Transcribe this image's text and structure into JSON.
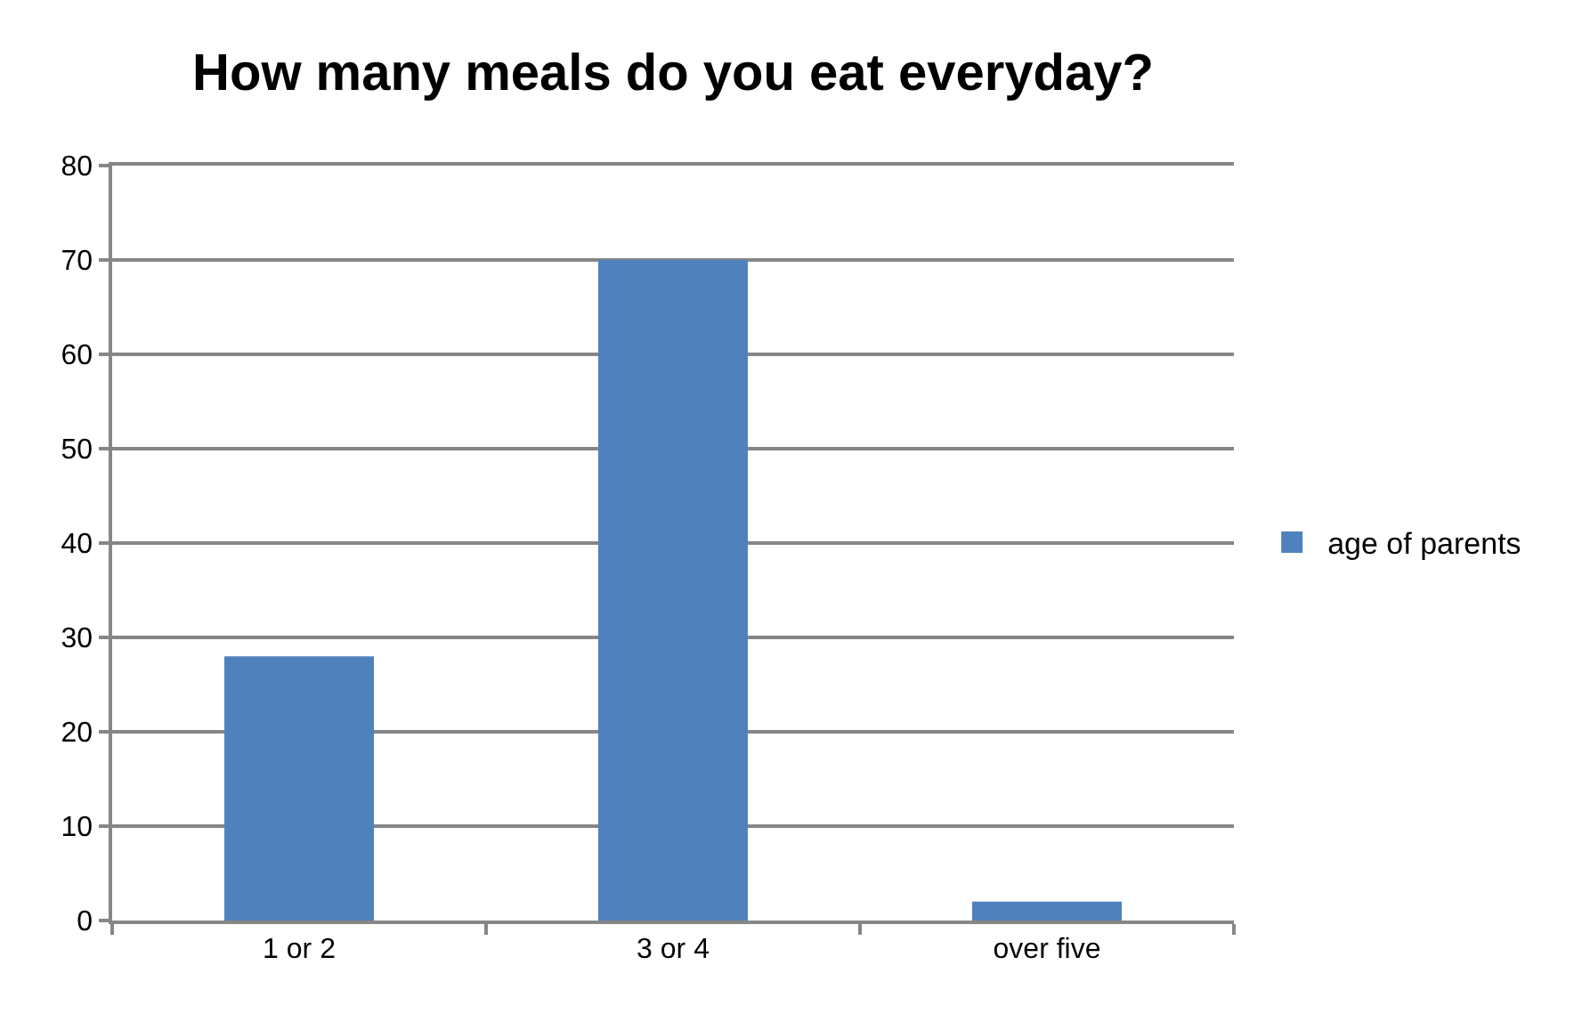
{
  "chart_data": {
    "type": "bar",
    "title": "How many meals do you eat everyday?",
    "categories": [
      "1 or 2",
      "3 or 4",
      "over five"
    ],
    "series": [
      {
        "name": "age of parents",
        "color": "#4f81bd",
        "values": [
          28,
          70,
          2
        ]
      }
    ],
    "ylim": [
      0,
      80
    ],
    "yticks": [
      0,
      10,
      20,
      30,
      40,
      50,
      60,
      70,
      80
    ],
    "grid": "y",
    "legend": "right"
  }
}
